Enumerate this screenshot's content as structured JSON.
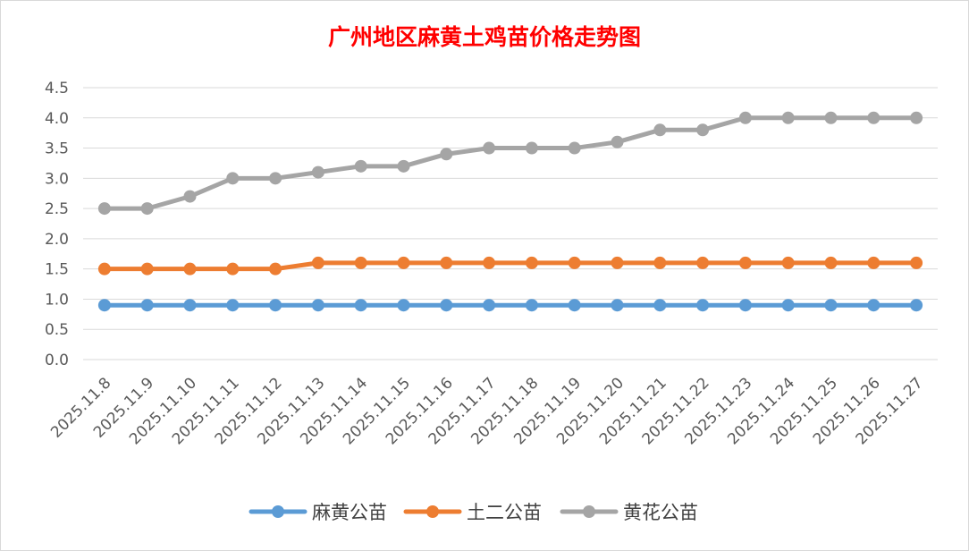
{
  "chart_data": {
    "type": "line",
    "title": "广州地区麻黄土鸡苗价格走势图",
    "xlabel": "",
    "ylabel": "",
    "ylim": [
      0,
      4.5
    ],
    "yticks": [
      "0.0",
      "0.5",
      "1.0",
      "1.5",
      "2.0",
      "2.5",
      "3.0",
      "3.5",
      "4.0",
      "4.5"
    ],
    "categories": [
      "2025.11.8",
      "2025.11.9",
      "2025.11.10",
      "2025.11.11",
      "2025.11.12",
      "2025.11.13",
      "2025.11.14",
      "2025.11.15",
      "2025.11.16",
      "2025.11.17",
      "2025.11.18",
      "2025.11.19",
      "2025.11.20",
      "2025.11.21",
      "2025.11.22",
      "2025.11.23",
      "2025.11.24",
      "2025.11.25",
      "2025.11.26",
      "2025.11.27"
    ],
    "grid": true,
    "legend_position": "bottom",
    "series": [
      {
        "name": "麻黄公苗",
        "color": "#5b9bd5",
        "values": [
          0.9,
          0.9,
          0.9,
          0.9,
          0.9,
          0.9,
          0.9,
          0.9,
          0.9,
          0.9,
          0.9,
          0.9,
          0.9,
          0.9,
          0.9,
          0.9,
          0.9,
          0.9,
          0.9,
          0.9
        ]
      },
      {
        "name": "土二公苗",
        "color": "#ed7d31",
        "values": [
          1.5,
          1.5,
          1.5,
          1.5,
          1.5,
          1.6,
          1.6,
          1.6,
          1.6,
          1.6,
          1.6,
          1.6,
          1.6,
          1.6,
          1.6,
          1.6,
          1.6,
          1.6,
          1.6,
          1.6
        ]
      },
      {
        "name": "黄花公苗",
        "color": "#a5a5a5",
        "values": [
          2.5,
          2.5,
          2.7,
          3.0,
          3.0,
          3.1,
          3.2,
          3.2,
          3.4,
          3.5,
          3.5,
          3.5,
          3.6,
          3.8,
          3.8,
          4.0,
          4.0,
          4.0,
          4.0,
          4.0
        ]
      }
    ]
  }
}
